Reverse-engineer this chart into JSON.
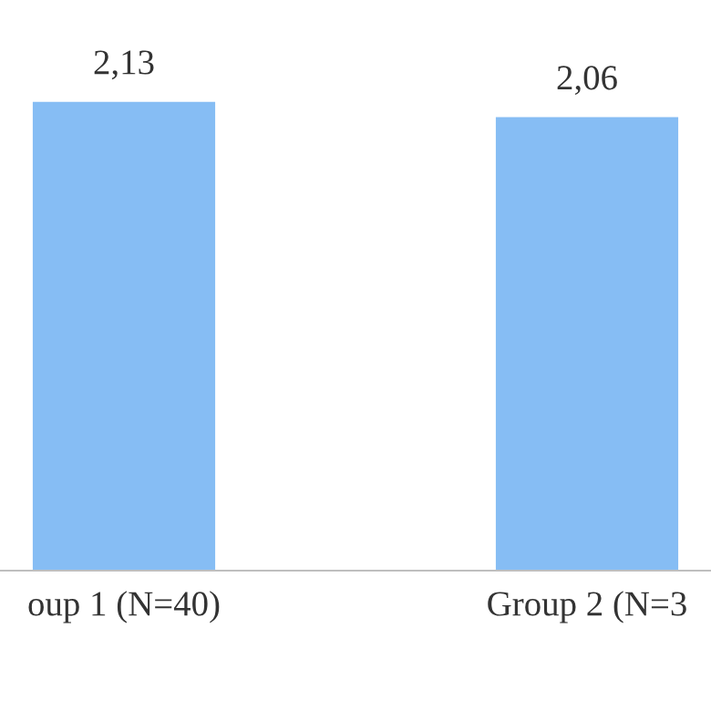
{
  "chart_data": {
    "type": "bar",
    "categories": [
      "oup 1 (N=40)",
      "Group 2 (N=3"
    ],
    "values": [
      2.13,
      2.06
    ],
    "value_labels": [
      "2,13",
      "2,06"
    ],
    "color": "#86bdf4",
    "tick_labels": "x",
    "grid": false,
    "legend": false
  }
}
